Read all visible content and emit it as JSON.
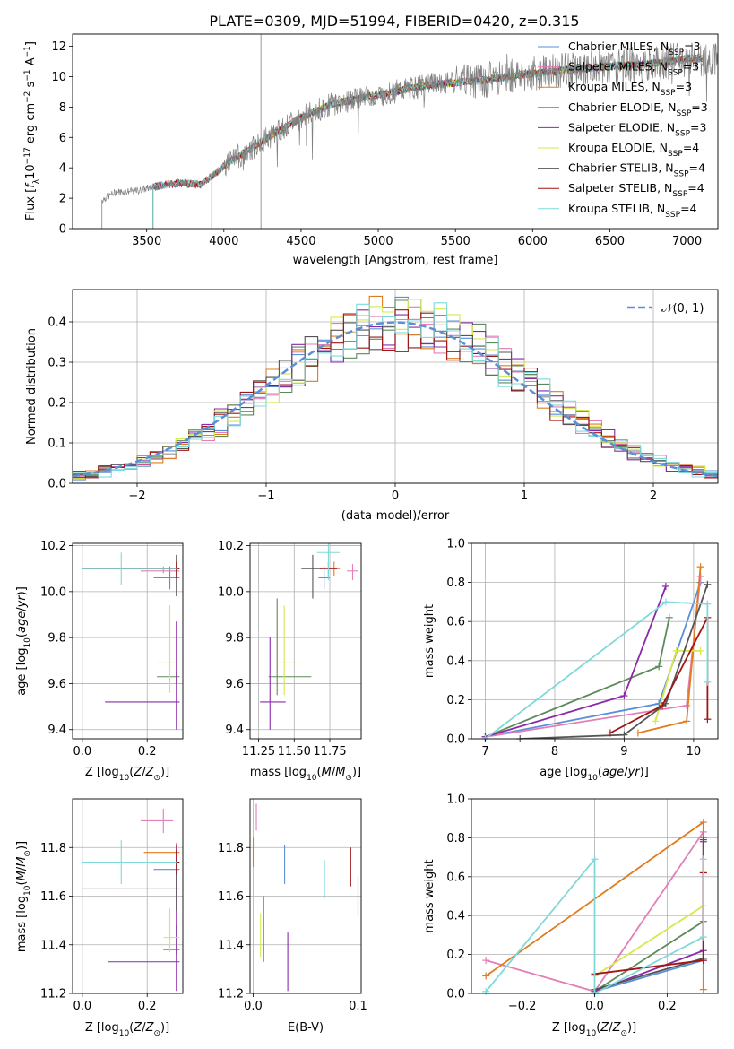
{
  "title": "PLATE=0309, MJD=51994, FIBERID=0420, z=0.315",
  "colors": {
    "Chabrier MILES": "#5b8fd9",
    "Salpeter MILES": "#e17fb6",
    "Kroupa MILES": "#e07b1f",
    "Chabrier ELODIE": "#5c8a5c",
    "Salpeter ELODIE": "#8b2aa8",
    "Kroupa ELODIE": "#d6e84a",
    "Chabrier STELIB": "#555555",
    "Salpeter STELIB": "#a01515",
    "Kroupa STELIB": "#7fd9d9",
    "data": "#808080",
    "grid": "#b0b0b0"
  },
  "chart_data": [
    {
      "id": "spectrum",
      "type": "line",
      "title": "PLATE=0309, MJD=51994, FIBERID=0420, z=0.315",
      "xlabel": "wavelength [Angstrom, rest frame]",
      "ylabel": "Flux [f_λ10^-17 erg cm^-2 s^-1 A^-1]",
      "xlim": [
        3020,
        7200
      ],
      "ylim": [
        0,
        12.8
      ],
      "xticks": [
        3500,
        4000,
        4500,
        5000,
        5500,
        6000,
        6500,
        7000
      ],
      "yticks": [
        0,
        2,
        4,
        6,
        8,
        10,
        12
      ],
      "grid": false,
      "legend_position": "right",
      "legend": [
        "Chabrier MILES, N_SSP=3",
        "Salpeter MILES, N_SSP=3",
        "Kroupa MILES, N_SSP=3",
        "Chabrier ELODIE, N_SSP=3",
        "Salpeter ELODIE, N_SSP=3",
        "Kroupa ELODIE, N_SSP=4",
        "Chabrier STELIB, N_SSP=4",
        "Salpeter STELIB, N_SSP=4",
        "Kroupa STELIB, N_SSP=4"
      ],
      "continuum_x": [
        3210,
        3300,
        3450,
        3520,
        3700,
        3850,
        3950,
        4050,
        4200,
        4350,
        4500,
        4700,
        4900,
        5100,
        5300,
        5500,
        5700,
        5900,
        6100,
        6300,
        6500,
        6700,
        6900,
        7000
      ],
      "continuum_y": [
        1.9,
        2.4,
        2.5,
        2.7,
        3.0,
        2.9,
        3.7,
        4.5,
        5.4,
        6.4,
        7.3,
        8.2,
        8.6,
        9.0,
        9.4,
        9.6,
        9.8,
        10.1,
        10.3,
        10.5,
        10.7,
        10.8,
        11.0,
        11.2
      ],
      "model_start_x": {
        "MILES": 3540,
        "ELODIE": 3920,
        "STELIB": 3540
      }
    },
    {
      "id": "residuals",
      "type": "bar",
      "xlabel": "(data-model)/error",
      "ylabel": "Normed distribution",
      "xlim": [
        -2.5,
        2.5
      ],
      "ylim": [
        0,
        0.48
      ],
      "xticks": [
        -2,
        -1,
        0,
        1,
        2
      ],
      "yticks": [
        0.0,
        0.1,
        0.2,
        0.3,
        0.4
      ],
      "grid": true,
      "legend": [
        "𝒩(0, 1)"
      ],
      "legend_position": "top-right",
      "bin_width": 0.1,
      "bin_start": -2.5
    },
    {
      "id": "age-vs-Z",
      "type": "scatter",
      "xlabel": "Z [log10(Z/Z⊙)]",
      "ylabel": "age  [log10(age/yr)]",
      "xlim": [
        -0.03,
        0.31
      ],
      "ylim": [
        9.36,
        10.21
      ],
      "xticks": [
        0.0,
        0.2
      ],
      "yticks": [
        9.4,
        9.6,
        9.8,
        10.0,
        10.2
      ],
      "grid": true,
      "points": [
        {
          "m": "Chabrier MILES",
          "x": 0.27,
          "y": 10.06,
          "xe": [
            0.05,
            0.03
          ],
          "ye": [
            0.05,
            0.05
          ]
        },
        {
          "m": "Salpeter MILES",
          "x": 0.25,
          "y": 10.09,
          "xe": [
            0.07,
            0.05
          ],
          "ye": [
            0.01,
            0.02
          ]
        },
        {
          "m": "Kroupa MILES",
          "x": 0.29,
          "y": 10.1,
          "xe": [
            0.03,
            0.01
          ],
          "ye": [
            0.02,
            0.02
          ]
        },
        {
          "m": "Chabrier ELODIE",
          "x": 0.29,
          "y": 9.63,
          "xe": [
            0.06,
            0.01
          ],
          "ye": [
            0.03,
            0.02
          ]
        },
        {
          "m": "Salpeter ELODIE",
          "x": 0.29,
          "y": 9.52,
          "xe": [
            0.22,
            0.01
          ],
          "ye": [
            0.12,
            0.35
          ]
        },
        {
          "m": "Kroupa ELODIE",
          "x": 0.27,
          "y": 9.69,
          "xe": [
            0.04,
            0.02
          ],
          "ye": [
            0.13,
            0.25
          ]
        },
        {
          "m": "Chabrier STELIB",
          "x": 0.29,
          "y": 10.1,
          "xe": [
            0.29,
            0.01
          ],
          "ye": [
            0.12,
            0.06
          ]
        },
        {
          "m": "Salpeter STELIB",
          "x": 0.29,
          "y": 10.1,
          "xe": [
            0.29,
            0.01
          ],
          "ye": [
            0.04,
            0.03
          ]
        },
        {
          "m": "Kroupa STELIB",
          "x": 0.12,
          "y": 10.1,
          "xe": [
            0.12,
            0.17
          ],
          "ye": [
            0.07,
            0.07
          ]
        }
      ]
    },
    {
      "id": "age-vs-mass",
      "type": "scatter",
      "xlabel": "mass [log10(M/M⊙)]",
      "ylabel": "",
      "xlim": [
        11.19,
        11.97
      ],
      "ylim": [
        9.36,
        10.21
      ],
      "xticks": [
        11.25,
        11.5,
        11.75
      ],
      "yticks": [
        9.4,
        9.6,
        9.8,
        10.0,
        10.2
      ],
      "grid": true,
      "points": [
        {
          "m": "Chabrier MILES",
          "x": 11.71,
          "y": 10.06,
          "xe": [
            0.04,
            0.04
          ],
          "ye": [
            0.05,
            0.05
          ]
        },
        {
          "m": "Salpeter MILES",
          "x": 11.91,
          "y": 10.09,
          "xe": [
            0.04,
            0.04
          ],
          "ye": [
            0.04,
            0.03
          ]
        },
        {
          "m": "Kroupa MILES",
          "x": 11.78,
          "y": 10.1,
          "xe": [
            0.04,
            0.04
          ],
          "ye": [
            0.03,
            0.03
          ]
        },
        {
          "m": "Chabrier ELODIE",
          "x": 11.38,
          "y": 9.63,
          "xe": [
            0.06,
            0.24
          ],
          "ye": [
            0.08,
            0.34
          ]
        },
        {
          "m": "Salpeter ELODIE",
          "x": 11.33,
          "y": 9.52,
          "xe": [
            0.07,
            0.11
          ],
          "ye": [
            0.12,
            0.28
          ]
        },
        {
          "m": "Kroupa ELODIE",
          "x": 11.43,
          "y": 9.69,
          "xe": [
            0.06,
            0.12
          ],
          "ye": [
            0.14,
            0.25
          ]
        },
        {
          "m": "Chabrier STELIB",
          "x": 11.63,
          "y": 10.1,
          "xe": [
            0.08,
            0.06
          ],
          "ye": [
            0.13,
            0.06
          ]
        },
        {
          "m": "Salpeter STELIB",
          "x": 11.74,
          "y": 10.1,
          "xe": [
            0.06,
            0.06
          ],
          "ye": [
            0.04,
            0.03
          ]
        },
        {
          "m": "Kroupa STELIB",
          "x": 11.74,
          "y": 10.17,
          "xe": [
            0.08,
            0.08
          ],
          "ye": [
            0.12,
            0.07
          ]
        }
      ]
    },
    {
      "id": "weight-vs-age",
      "type": "line",
      "xlabel": "age  [log10(age/yr)]",
      "ylabel": "mass weight",
      "xlim": [
        6.8,
        10.35
      ],
      "ylim": [
        0,
        1.0
      ],
      "xticks": [
        7,
        8,
        9,
        10
      ],
      "yticks": [
        0.0,
        0.2,
        0.4,
        0.6,
        0.8,
        1.0
      ],
      "grid": true,
      "series": [
        {
          "m": "Chabrier MILES",
          "x": [
            7.0,
            9.5,
            10.1
          ],
          "y": [
            0.01,
            0.18,
            0.8
          ]
        },
        {
          "m": "Salpeter MILES",
          "x": [
            7.0,
            9.9,
            10.1
          ],
          "y": [
            0.01,
            0.17,
            0.83
          ]
        },
        {
          "m": "Kroupa MILES",
          "x": [
            9.2,
            9.9,
            10.1
          ],
          "y": [
            0.03,
            0.09,
            0.88
          ]
        },
        {
          "m": "Chabrier ELODIE",
          "x": [
            7.0,
            9.5,
            9.65
          ],
          "y": [
            0.01,
            0.37,
            0.62
          ]
        },
        {
          "m": "Salpeter ELODIE",
          "x": [
            7.0,
            9.0,
            9.6
          ],
          "y": [
            0.01,
            0.22,
            0.78
          ]
        },
        {
          "m": "Kroupa ELODIE",
          "x": [
            9.45,
            9.75,
            10.1
          ],
          "y": [
            0.09,
            0.45,
            0.45
          ]
        },
        {
          "m": "Chabrier STELIB",
          "x": [
            7.5,
            9.0,
            9.6,
            10.2
          ],
          "y": [
            0.0,
            0.02,
            0.18,
            0.79
          ]
        },
        {
          "m": "Salpeter STELIB",
          "x": [
            8.8,
            9.55,
            10.2,
            10.2
          ],
          "y": [
            0.03,
            0.17,
            0.62,
            0.1
          ]
        },
        {
          "m": "Kroupa STELIB",
          "x": [
            7.0,
            9.6,
            10.2,
            10.2
          ],
          "y": [
            0.0,
            0.7,
            0.69,
            0.29
          ]
        }
      ]
    },
    {
      "id": "mass-vs-Z",
      "type": "scatter",
      "xlabel": "Z [log10(Z/Z⊙)]",
      "ylabel": "mass [log10(M/M⊙)]",
      "xlim": [
        -0.03,
        0.31
      ],
      "ylim": [
        11.2,
        12.0
      ],
      "xticks": [
        0.0,
        0.2
      ],
      "yticks": [
        11.2,
        11.4,
        11.6,
        11.8
      ],
      "grid": true,
      "points": [
        {
          "m": "Chabrier MILES",
          "x": 0.29,
          "y": 11.71,
          "xe": [
            0.07,
            0.01
          ],
          "ye": [
            0.04,
            0.04
          ]
        },
        {
          "m": "Salpeter MILES",
          "x": 0.25,
          "y": 11.91,
          "xe": [
            0.07,
            0.03
          ],
          "ye": [
            0.05,
            0.05
          ]
        },
        {
          "m": "Kroupa MILES",
          "x": 0.29,
          "y": 11.78,
          "xe": [
            0.1,
            0.01
          ],
          "ye": [
            0.05,
            0.04
          ]
        },
        {
          "m": "Chabrier ELODIE",
          "x": 0.29,
          "y": 11.38,
          "xe": [
            0.04,
            0.01
          ],
          "ye": [
            0.02,
            0.1
          ]
        },
        {
          "m": "Salpeter ELODIE",
          "x": 0.29,
          "y": 11.33,
          "xe": [
            0.21,
            0.01
          ],
          "ye": [
            0.12,
            0.48
          ]
        },
        {
          "m": "Kroupa ELODIE",
          "x": 0.27,
          "y": 11.43,
          "xe": [
            0.02,
            0.03
          ],
          "ye": [
            0.06,
            0.12
          ]
        },
        {
          "m": "Chabrier STELIB",
          "x": 0.29,
          "y": 11.63,
          "xe": [
            0.29,
            0.01
          ],
          "ye": [
            0.09,
            0.1
          ]
        },
        {
          "m": "Salpeter STELIB",
          "x": 0.29,
          "y": 11.74,
          "xe": [
            0.29,
            0.01
          ],
          "ye": [
            0.05,
            0.05
          ]
        },
        {
          "m": "Kroupa STELIB",
          "x": 0.12,
          "y": 11.74,
          "xe": [
            0.12,
            0.17
          ],
          "ye": [
            0.09,
            0.09
          ]
        }
      ]
    },
    {
      "id": "mass-vs-EBV",
      "type": "scatter",
      "xlabel": "E(B-V)",
      "ylabel": "",
      "xlim": [
        -0.003,
        0.103
      ],
      "ylim": [
        11.2,
        12.0
      ],
      "xticks": [
        0.0,
        0.1
      ],
      "yticks": [
        11.2,
        11.4,
        11.6,
        11.8
      ],
      "grid": true,
      "points": [
        {
          "m": "Chabrier MILES",
          "x": 0.03,
          "y": 11.73,
          "xe": [
            0,
            0
          ],
          "ye": [
            0.08,
            0.08
          ]
        },
        {
          "m": "Salpeter MILES",
          "x": 0.003,
          "y": 11.92,
          "xe": [
            0,
            0
          ],
          "ye": [
            0.05,
            0.06
          ]
        },
        {
          "m": "Kroupa MILES",
          "x": 0.0,
          "y": 11.78,
          "xe": [
            0,
            0
          ],
          "ye": [
            0.06,
            0.06
          ]
        },
        {
          "m": "Chabrier ELODIE",
          "x": 0.01,
          "y": 11.38,
          "xe": [
            0,
            0
          ],
          "ye": [
            0.05,
            0.22
          ]
        },
        {
          "m": "Salpeter ELODIE",
          "x": 0.033,
          "y": 11.33,
          "xe": [
            0,
            0
          ],
          "ye": [
            0.12,
            0.12
          ]
        },
        {
          "m": "Kroupa ELODIE",
          "x": 0.007,
          "y": 11.43,
          "xe": [
            0,
            0
          ],
          "ye": [
            0.08,
            0.1
          ]
        },
        {
          "m": "Chabrier STELIB",
          "x": 0.1,
          "y": 11.61,
          "xe": [
            0,
            0
          ],
          "ye": [
            0.09,
            0.07
          ]
        },
        {
          "m": "Salpeter STELIB",
          "x": 0.093,
          "y": 11.72,
          "xe": [
            0,
            0
          ],
          "ye": [
            0.08,
            0.08
          ]
        },
        {
          "m": "Kroupa STELIB",
          "x": 0.068,
          "y": 11.67,
          "xe": [
            0,
            0
          ],
          "ye": [
            0.08,
            0.08
          ]
        }
      ]
    },
    {
      "id": "weight-vs-Z",
      "type": "line",
      "xlabel": "Z [log10(Z/Z⊙)]",
      "ylabel": "mass weight",
      "xlim": [
        -0.34,
        0.34
      ],
      "ylim": [
        0,
        1.0
      ],
      "xticks": [
        -0.2,
        0.0,
        0.2
      ],
      "yticks": [
        0.0,
        0.2,
        0.4,
        0.6,
        0.8,
        1.0
      ],
      "grid": true,
      "series": [
        {
          "m": "Chabrier MILES",
          "x": [
            0.0,
            0.3,
            0.3
          ],
          "y": [
            0.01,
            0.17,
            0.8
          ]
        },
        {
          "m": "Salpeter MILES",
          "x": [
            -0.3,
            0.0,
            0.3,
            0.3
          ],
          "y": [
            0.17,
            0.01,
            0.83,
            0.17
          ]
        },
        {
          "m": "Kroupa MILES",
          "x": [
            -0.3,
            0.3,
            0.3
          ],
          "y": [
            0.09,
            0.88,
            0.02
          ]
        },
        {
          "m": "Chabrier ELODIE",
          "x": [
            0.0,
            0.3,
            0.3
          ],
          "y": [
            0.01,
            0.37,
            0.62
          ]
        },
        {
          "m": "Salpeter ELODIE",
          "x": [
            0.0,
            0.3,
            0.3
          ],
          "y": [
            0.01,
            0.22,
            0.78
          ]
        },
        {
          "m": "Kroupa ELODIE",
          "x": [
            0.0,
            0.3,
            0.3
          ],
          "y": [
            0.09,
            0.45,
            0.45
          ]
        },
        {
          "m": "Chabrier STELIB",
          "x": [
            0.0,
            0.3,
            0.3
          ],
          "y": [
            0.02,
            0.18,
            0.79
          ]
        },
        {
          "m": "Salpeter STELIB",
          "x": [
            0.0,
            0.3,
            0.3
          ],
          "y": [
            0.1,
            0.17,
            0.62
          ]
        },
        {
          "m": "Kroupa STELIB",
          "x": [
            -0.3,
            0.0,
            0.0,
            0.3,
            0.3
          ],
          "y": [
            0.01,
            0.69,
            0.0,
            0.29,
            0.69
          ]
        }
      ]
    }
  ]
}
